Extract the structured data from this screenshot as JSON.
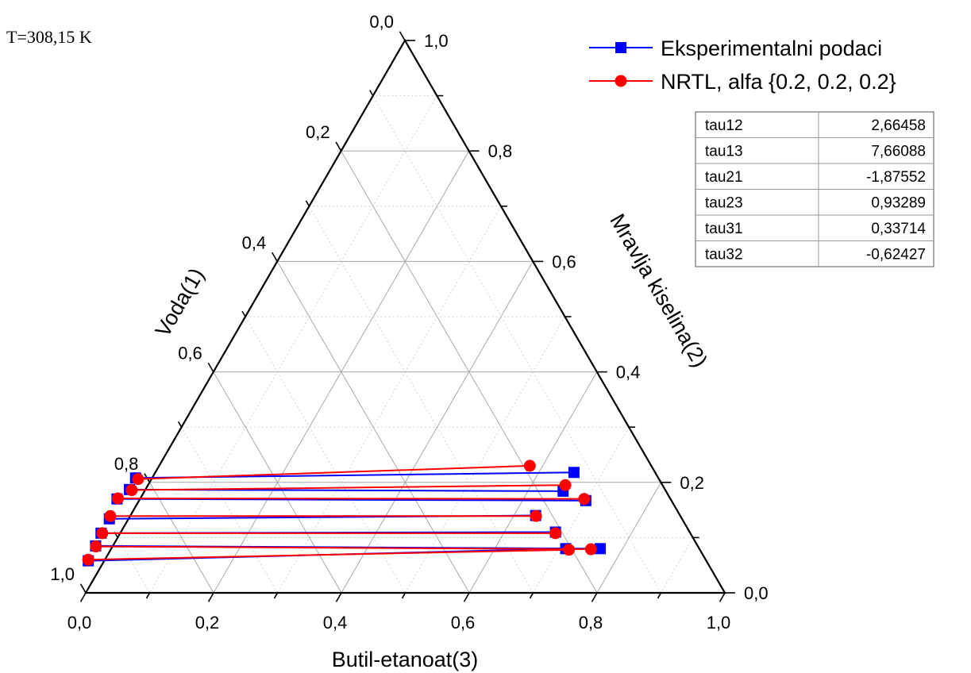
{
  "chart_data": {
    "type": "ternary",
    "annotation": "T=308,15 K",
    "axes": {
      "left": {
        "label": "Voda(1)",
        "ticks": [
          "0,0",
          "0,2",
          "0,4",
          "0,6",
          "0,8",
          "1,0"
        ]
      },
      "right": {
        "label": "Mravlja kiselina(2)",
        "ticks": [
          "0,0",
          "0,2",
          "0,4",
          "0,6",
          "0,8",
          "1,0"
        ]
      },
      "bottom": {
        "label": "Butil-etanoat(3)",
        "ticks": [
          "0,0",
          "0,2",
          "0,4",
          "0,6",
          "0,8",
          "1,0"
        ]
      }
    },
    "grid": true,
    "legend": {
      "placement": "top-right",
      "entries": [
        {
          "name": "Eksperimentalni podaci",
          "color": "#0000ff",
          "marker": "square"
        },
        {
          "name": "NRTL, alfa {0.2, 0.2, 0.2}",
          "color": "#ff0000",
          "marker": "circle"
        }
      ]
    },
    "parameters": [
      {
        "name": "tau12",
        "value": "2,66458"
      },
      {
        "name": "tau13",
        "value": "7,66088"
      },
      {
        "name": "tau21",
        "value": "-1,87552"
      },
      {
        "name": "tau23",
        "value": "0,93289"
      },
      {
        "name": "tau31",
        "value": "0,33714"
      },
      {
        "name": "tau32",
        "value": "-0,62427"
      }
    ],
    "series": [
      {
        "name": "Eksperimentalni podaci",
        "tie_lines": [
          [
            {
              "x1": 0.818,
              "x2": 0.208
            },
            {
              "x1": 0.127,
              "x2": 0.218
            }
          ],
          [
            {
              "x1": 0.838,
              "x2": 0.187
            },
            {
              "x1": 0.161,
              "x2": 0.184
            }
          ],
          [
            {
              "x1": 0.866,
              "x2": 0.17
            },
            {
              "x1": 0.134,
              "x2": 0.167
            }
          ],
          [
            {
              "x1": 0.896,
              "x2": 0.134
            },
            {
              "x1": 0.226,
              "x2": 0.14
            }
          ],
          [
            {
              "x1": 0.922,
              "x2": 0.108
            },
            {
              "x1": 0.21,
              "x2": 0.11
            }
          ],
          [
            {
              "x1": 0.942,
              "x2": 0.085
            },
            {
              "x1": 0.155,
              "x2": 0.08
            }
          ],
          [
            {
              "x1": 0.967,
              "x2": 0.058
            },
            {
              "x1": 0.209,
              "x2": 0.08
            }
          ]
        ]
      },
      {
        "name": "NRTL, alfa {0.2, 0.2, 0.2}",
        "tie_lines": [
          [
            {
              "x1": 0.815,
              "x2": 0.206
            },
            {
              "x1": 0.19,
              "x2": 0.23
            }
          ],
          [
            {
              "x1": 0.835,
              "x2": 0.186
            },
            {
              "x1": 0.152,
              "x2": 0.195
            }
          ],
          [
            {
              "x1": 0.864,
              "x2": 0.171
            },
            {
              "x1": 0.135,
              "x2": 0.17
            }
          ],
          [
            {
              "x1": 0.892,
              "x2": 0.139
            },
            {
              "x1": 0.226,
              "x2": 0.139
            }
          ],
          [
            {
              "x1": 0.92,
              "x2": 0.108
            },
            {
              "x1": 0.211,
              "x2": 0.108
            }
          ],
          [
            {
              "x1": 0.942,
              "x2": 0.084
            },
            {
              "x1": 0.17,
              "x2": 0.079
            }
          ],
          [
            {
              "x1": 0.966,
              "x2": 0.06
            },
            {
              "x1": 0.205,
              "x2": 0.078
            }
          ]
        ]
      }
    ]
  }
}
